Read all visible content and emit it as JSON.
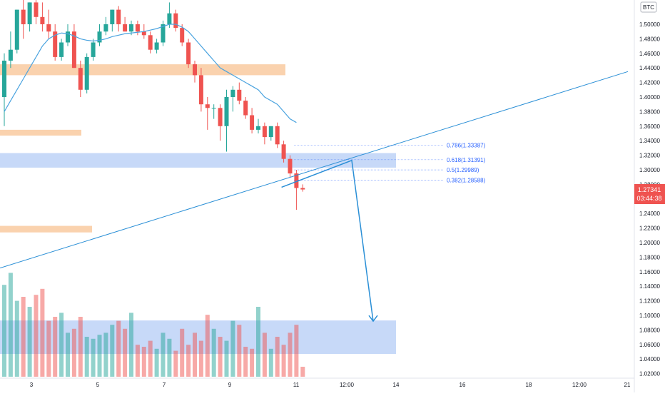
{
  "symbol_badge": "BTC",
  "price_axis": {
    "labels": [
      "1.50000",
      "1.48000",
      "1.46000",
      "1.44000",
      "1.42000",
      "1.40000",
      "1.38000",
      "1.36000",
      "1.34000",
      "1.32000",
      "1.30000",
      "1.28000",
      "1.26000",
      "1.24000",
      "1.22000",
      "1.20000",
      "1.18000",
      "1.16000",
      "1.14000",
      "1.12000",
      "1.10000",
      "1.08000",
      "1.06000",
      "1.04000",
      "1.02000"
    ],
    "values": [
      1.5,
      1.48,
      1.46,
      1.44,
      1.42,
      1.4,
      1.38,
      1.36,
      1.34,
      1.32,
      1.3,
      1.28,
      1.26,
      1.24,
      1.22,
      1.2,
      1.18,
      1.16,
      1.14,
      1.12,
      1.1,
      1.08,
      1.06,
      1.04,
      1.02
    ]
  },
  "time_axis": {
    "labels": [
      "3",
      "5",
      "7",
      "9",
      "11",
      "12:00",
      "14",
      "16",
      "18",
      "12:00",
      "21"
    ]
  },
  "current_price": {
    "price": "1.27341",
    "countdown": "03:44:38",
    "color": "#ef5350"
  },
  "fib_levels": [
    {
      "label": "0.786(1.33387)",
      "value": 1.33387
    },
    {
      "label": "0.618(1.31391)",
      "value": 1.31391
    },
    {
      "label": "0.5(1.29989)",
      "value": 1.29989
    },
    {
      "label": "0.382(1.28588)",
      "value": 1.28588
    }
  ],
  "colors": {
    "up": "#26a69a",
    "down": "#ef5350",
    "ma": "#4aa3df",
    "zone_orange": "#f9c79a",
    "zone_blue": "#90b4f2",
    "trend": "#2a8fd6",
    "fib": "#2962ff"
  },
  "chart_data": {
    "type": "candlestick",
    "title": "",
    "price_range": [
      1.01,
      1.51
    ],
    "grid": false,
    "candles": [
      [
        1.4,
        1.46,
        1.36,
        1.45
      ],
      [
        1.45,
        1.49,
        1.44,
        1.465
      ],
      [
        1.465,
        1.52,
        1.46,
        1.52
      ],
      [
        1.52,
        1.535,
        1.48,
        1.5
      ],
      [
        1.5,
        1.53,
        1.49,
        1.53
      ],
      [
        1.53,
        1.535,
        1.5,
        1.51
      ],
      [
        1.51,
        1.53,
        1.49,
        1.5
      ],
      [
        1.5,
        1.52,
        1.48,
        1.49
      ],
      [
        1.49,
        1.5,
        1.45,
        1.455
      ],
      [
        1.455,
        1.48,
        1.45,
        1.475
      ],
      [
        1.475,
        1.5,
        1.47,
        1.49
      ],
      [
        1.49,
        1.5,
        1.44,
        1.44
      ],
      [
        1.44,
        1.45,
        1.4,
        1.41
      ],
      [
        1.41,
        1.46,
        1.405,
        1.455
      ],
      [
        1.455,
        1.48,
        1.45,
        1.475
      ],
      [
        1.475,
        1.5,
        1.47,
        1.49
      ],
      [
        1.49,
        1.51,
        1.485,
        1.5
      ],
      [
        1.5,
        1.52,
        1.49,
        1.52
      ],
      [
        1.52,
        1.525,
        1.49,
        1.5
      ],
      [
        1.5,
        1.51,
        1.49,
        1.49
      ],
      [
        1.49,
        1.505,
        1.485,
        1.5
      ],
      [
        1.5,
        1.505,
        1.485,
        1.49
      ],
      [
        1.49,
        1.5,
        1.48,
        1.485
      ],
      [
        1.485,
        1.49,
        1.46,
        1.465
      ],
      [
        1.465,
        1.48,
        1.46,
        1.475
      ],
      [
        1.475,
        1.505,
        1.47,
        1.5
      ],
      [
        1.5,
        1.53,
        1.495,
        1.515
      ],
      [
        1.515,
        1.52,
        1.49,
        1.495
      ],
      [
        1.495,
        1.5,
        1.47,
        1.475
      ],
      [
        1.475,
        1.48,
        1.44,
        1.445
      ],
      [
        1.445,
        1.45,
        1.42,
        1.43
      ],
      [
        1.43,
        1.44,
        1.38,
        1.39
      ],
      [
        1.39,
        1.4,
        1.355,
        1.385
      ],
      [
        1.385,
        1.39,
        1.37,
        1.385
      ],
      [
        1.385,
        1.39,
        1.34,
        1.36
      ],
      [
        1.36,
        1.41,
        1.325,
        1.4
      ],
      [
        1.4,
        1.415,
        1.38,
        1.41
      ],
      [
        1.41,
        1.42,
        1.39,
        1.395
      ],
      [
        1.395,
        1.4,
        1.37,
        1.375
      ],
      [
        1.375,
        1.385,
        1.35,
        1.355
      ],
      [
        1.355,
        1.37,
        1.35,
        1.36
      ],
      [
        1.36,
        1.365,
        1.335,
        1.345
      ],
      [
        1.345,
        1.36,
        1.34,
        1.36
      ],
      [
        1.36,
        1.365,
        1.33,
        1.335
      ],
      [
        1.335,
        1.34,
        1.31,
        1.315
      ],
      [
        1.315,
        1.32,
        1.29,
        1.295
      ],
      [
        1.295,
        1.3,
        1.245,
        1.275
      ],
      [
        1.275,
        1.28,
        1.27,
        1.273
      ]
    ],
    "moving_average": [
      1.38,
      1.395,
      1.41,
      1.425,
      1.44,
      1.455,
      1.47,
      1.48,
      1.485,
      1.488,
      1.487,
      1.484,
      1.48,
      1.478,
      1.477,
      1.478,
      1.48,
      1.483,
      1.485,
      1.487,
      1.488,
      1.489,
      1.49,
      1.492,
      1.494,
      1.497,
      1.5,
      1.5,
      1.496,
      1.49,
      1.48,
      1.47,
      1.46,
      1.45,
      1.44,
      1.435,
      1.43,
      1.425,
      1.42,
      1.415,
      1.41,
      1.4,
      1.395,
      1.39,
      1.38,
      1.37,
      1.365
    ],
    "volume": [
      46,
      52,
      38,
      40,
      35,
      41,
      44,
      28,
      30,
      32,
      22,
      24,
      30,
      20,
      19,
      21,
      22,
      26,
      28,
      24,
      32,
      16,
      15,
      18,
      14,
      22,
      19,
      13,
      24,
      16,
      22,
      18,
      31,
      24,
      20,
      18,
      28,
      26,
      15,
      14,
      35,
      22,
      14,
      20,
      16,
      22,
      26,
      5
    ],
    "orange_zones": [
      [
        1.445,
        1.43
      ],
      [
        1.355,
        1.347
      ],
      [
        1.223,
        1.214
      ]
    ],
    "blue_zones": [
      [
        1.323,
        1.303
      ],
      [
        1.093,
        1.047
      ]
    ],
    "trendline": [
      [
        0,
        1.165
      ],
      [
        92,
        1.435
      ]
    ],
    "projection": [
      [
        44,
        1.276
      ],
      [
        50,
        1.313
      ],
      [
        54,
        1.092
      ]
    ]
  }
}
